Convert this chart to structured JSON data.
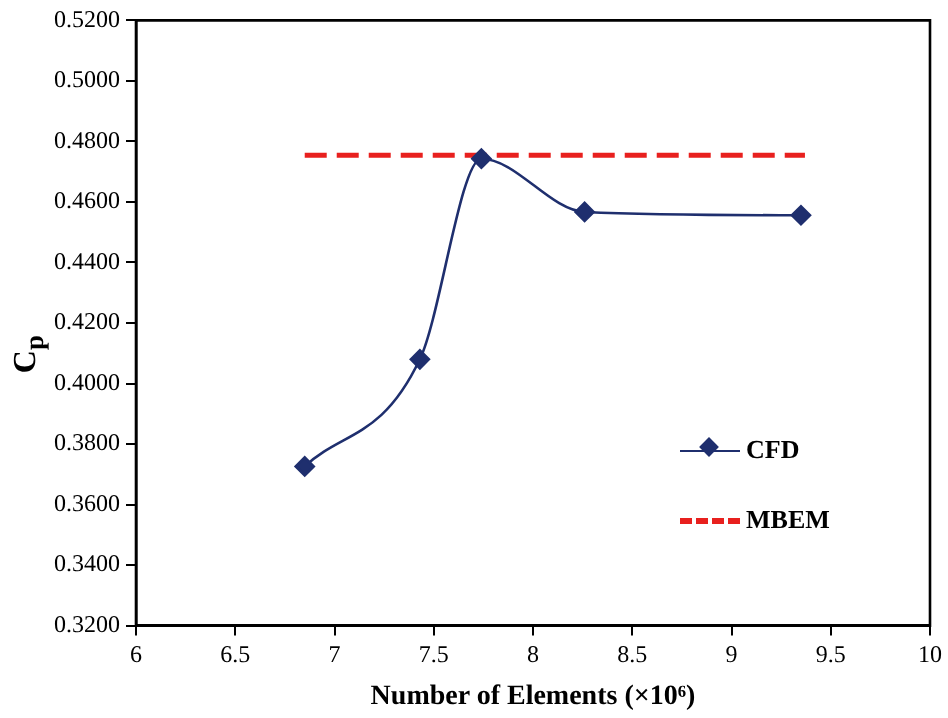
{
  "chart_data": {
    "type": "line",
    "xlabel": "Number of Elements (×10⁶)",
    "ylabel": "C$_{p}$",
    "xlim": [
      6,
      10
    ],
    "xticks": [
      6,
      6.5,
      7,
      7.5,
      8,
      8.5,
      9,
      9.5,
      10
    ],
    "ylim": [
      0.32,
      0.52
    ],
    "yticks": [
      {
        "value": 0.32,
        "label": "0.3200"
      },
      {
        "value": 0.34,
        "label": "0.3400"
      },
      {
        "value": 0.36,
        "label": "0.3600"
      },
      {
        "value": 0.38,
        "label": "0.3800"
      },
      {
        "value": 0.4,
        "label": "0.4000"
      },
      {
        "value": 0.42,
        "label": "0.4200"
      },
      {
        "value": 0.44,
        "label": "0.4400"
      },
      {
        "value": 0.46,
        "label": "0.4600"
      },
      {
        "value": 0.48,
        "label": "0.4800"
      },
      {
        "value": 0.5,
        "label": "0.5000"
      },
      {
        "value": 0.52,
        "label": "0.5200"
      }
    ],
    "grid": false,
    "legend": "bottom right",
    "series": [
      {
        "name": "CFD",
        "color": "#1f2f6e",
        "x": [
          6.85,
          7.43,
          7.74,
          8.26,
          9.35
        ],
        "values": [
          0.3726,
          0.408,
          0.4743,
          0.4567,
          0.4556
        ],
        "marker": "diamond",
        "line_style": "solid"
      },
      {
        "name": "MBEM",
        "color": "#e8201e",
        "x": [
          6.85,
          9.37
        ],
        "values": [
          0.4754,
          0.4754
        ],
        "marker": "none",
        "line_style": "dashed"
      }
    ]
  }
}
